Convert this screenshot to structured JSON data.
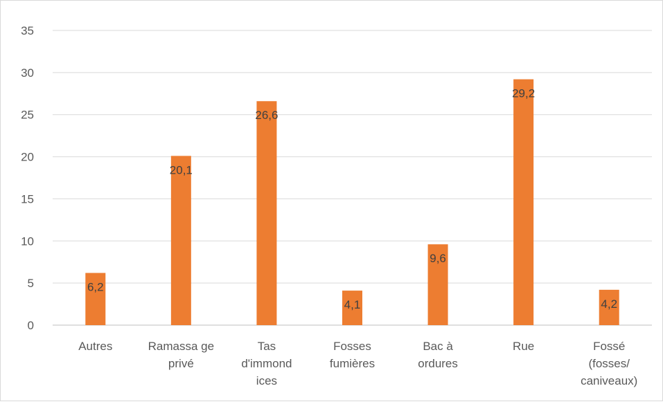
{
  "chart_data": {
    "type": "bar",
    "title": "",
    "xlabel": "",
    "ylabel": "",
    "ylim": [
      0,
      35
    ],
    "yticks": [
      0,
      5,
      10,
      15,
      20,
      25,
      30,
      35
    ],
    "grid": true,
    "legend": "none",
    "bar_color": "#ED7D31",
    "categories": [
      [
        "Autres"
      ],
      [
        "Ramassa ge",
        "privé"
      ],
      [
        "Tas",
        "d'immond",
        "ices"
      ],
      [
        "Fosses",
        "fumières"
      ],
      [
        "Bac à",
        "ordures"
      ],
      [
        "Rue"
      ],
      [
        "Fossé",
        "(fosses/",
        "caniveaux)"
      ]
    ],
    "values": [
      6.2,
      20.1,
      26.6,
      4.1,
      9.6,
      29.2,
      4.2
    ],
    "data_labels": [
      "6,2",
      "20,1",
      "26,6",
      "4,1",
      "9,6",
      "29,2",
      "4,2"
    ]
  }
}
